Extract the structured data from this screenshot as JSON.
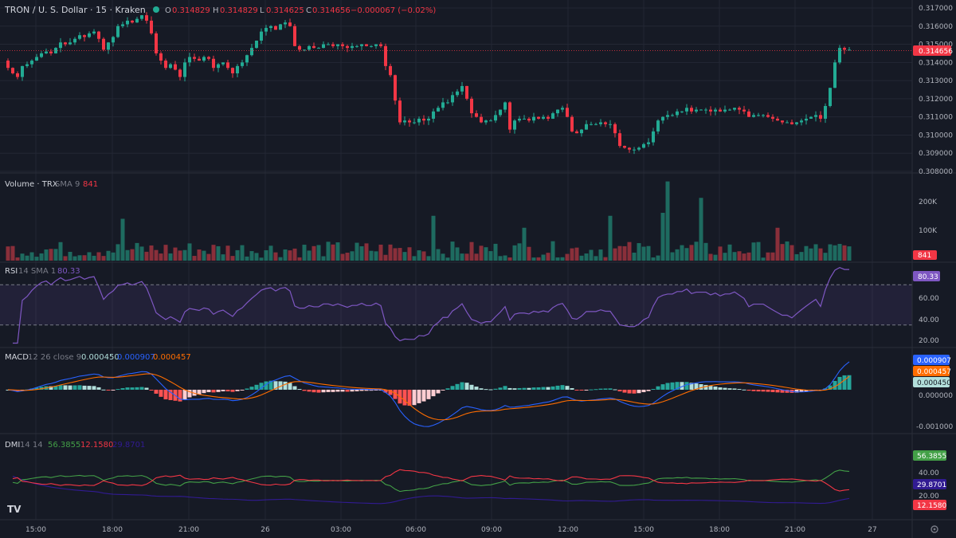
{
  "header": {
    "symbol": "TRON / U. S. Dollar · 15 · Kraken",
    "o_label": "O",
    "o": "0.314829",
    "h_label": "H",
    "h": "0.314829",
    "l_label": "L",
    "l": "0.314625",
    "c_label": "C",
    "c": "0.314656",
    "change": "−0.000067 (−0.02%)"
  },
  "colors": {
    "background": "#161a25",
    "grid": "#232734",
    "up": "#22ab94",
    "down": "#f23645",
    "vol_up": "#1e6b60",
    "vol_down": "#8a2f3a",
    "rsi": "#7e57c2",
    "macd": "#2962ff",
    "signal": "#ff6d00",
    "dmi_plus": "#43a047",
    "dmi_minus": "#f23645",
    "adx": "#311b92"
  },
  "price_axis": {
    "ticks": [
      "0.317000",
      "0.316000",
      "0.315000",
      "0.314000",
      "0.313000",
      "0.312000",
      "0.311000",
      "0.310000",
      "0.309000",
      "0.308000"
    ],
    "last_price_label": "0.314656"
  },
  "volume": {
    "title": "Volume · TRX",
    "sma_label": "SMA 9",
    "value": "841",
    "ticks": [
      "200K",
      "100K"
    ],
    "last_label": "841"
  },
  "rsi": {
    "title": "RSI",
    "params": "14 SMA 1",
    "value": "80.33",
    "ticks": [
      "60.00",
      "40.00",
      "20.00"
    ],
    "last_label": "80.33"
  },
  "macd": {
    "title": "MACD",
    "params": "12 26 close 9",
    "hist_value": "0.000450",
    "macd_value": "0.000907",
    "signal_value": "0.000457",
    "ticks": [
      "0.000000",
      "-0.001000"
    ],
    "labels": [
      "0.000907",
      "0.000457",
      "0.000450"
    ]
  },
  "dmi": {
    "title": "DMI",
    "params": "14 14",
    "plus_value": "56.3855",
    "minus_value": "12.1580",
    "adx_value": "29.8701",
    "ticks": [
      "40.00",
      "20.00"
    ],
    "labels": [
      "56.3855",
      "29.8701",
      "12.1580"
    ]
  },
  "time_axis": {
    "labels": [
      "15:00",
      "18:00",
      "21:00",
      "26",
      "03:00",
      "06:00",
      "09:00",
      "12:00",
      "15:00",
      "18:00",
      "21:00",
      "27"
    ]
  },
  "chart_data": {
    "type": "candlestick",
    "title": "TRON / U. S. Dollar · 15 · Kraken",
    "close": [
      0.3137,
      0.3134,
      0.3132,
      0.3138,
      0.3139,
      0.3141,
      0.3143,
      0.3145,
      0.3146,
      0.3145,
      0.3148,
      0.3151,
      0.315,
      0.3151,
      0.3153,
      0.3155,
      0.3154,
      0.3156,
      0.3157,
      0.3153,
      0.3147,
      0.3151,
      0.3154,
      0.316,
      0.3161,
      0.3163,
      0.3162,
      0.3164,
      0.3166,
      0.3163,
      0.3156,
      0.3145,
      0.3141,
      0.3137,
      0.3139,
      0.3136,
      0.3132,
      0.314,
      0.3143,
      0.3142,
      0.3141,
      0.3143,
      0.3142,
      0.3137,
      0.3139,
      0.314,
      0.3137,
      0.3134,
      0.3138,
      0.314,
      0.3144,
      0.3148,
      0.3152,
      0.3157,
      0.3159,
      0.316,
      0.3158,
      0.3161,
      0.3162,
      0.316,
      0.3149,
      0.3147,
      0.3147,
      0.3149,
      0.3148,
      0.3148,
      0.315,
      0.315,
      0.3149,
      0.315,
      0.3149,
      0.3148,
      0.3149,
      0.3149,
      0.315,
      0.3149,
      0.3149,
      0.315,
      0.3149,
      0.3138,
      0.3133,
      0.3119,
      0.3107,
      0.3108,
      0.3107,
      0.3107,
      0.3109,
      0.3108,
      0.3109,
      0.3113,
      0.3115,
      0.3118,
      0.3118,
      0.3122,
      0.3124,
      0.3127,
      0.312,
      0.3112,
      0.311,
      0.3107,
      0.3108,
      0.3108,
      0.3111,
      0.3114,
      0.3118,
      0.3103,
      0.3108,
      0.3109,
      0.3109,
      0.3108,
      0.311,
      0.3109,
      0.311,
      0.3109,
      0.3112,
      0.3114,
      0.3115,
      0.311,
      0.3102,
      0.3101,
      0.3103,
      0.3106,
      0.3106,
      0.3106,
      0.3107,
      0.3106,
      0.3106,
      0.3101,
      0.3094,
      0.3093,
      0.3092,
      0.3092,
      0.3093,
      0.3095,
      0.3096,
      0.3102,
      0.3108,
      0.311,
      0.3111,
      0.3111,
      0.3113,
      0.3113,
      0.3115,
      0.3113,
      0.3114,
      0.3114,
      0.3114,
      0.3113,
      0.3114,
      0.3113,
      0.3114,
      0.3114,
      0.3115,
      0.3114,
      0.3113,
      0.311,
      0.3111,
      0.3111,
      0.3111,
      0.311,
      0.3109,
      0.3108,
      0.3107,
      0.3107,
      0.3106,
      0.3107,
      0.3108,
      0.3109,
      0.311,
      0.3111,
      0.3109,
      0.3116,
      0.3126,
      0.314,
      0.3148,
      0.3147,
      0.3147
    ],
    "ylim": [
      0.308,
      0.317
    ],
    "volume_ylim": [
      0,
      280000
    ],
    "rsi_ylim": [
      10,
      90
    ],
    "rsi_bands": [
      70,
      30
    ],
    "macd_ylim": [
      -0.0013,
      0.0012
    ],
    "dmi_ylim": [
      0,
      65
    ],
    "last_price": 0.314656
  }
}
